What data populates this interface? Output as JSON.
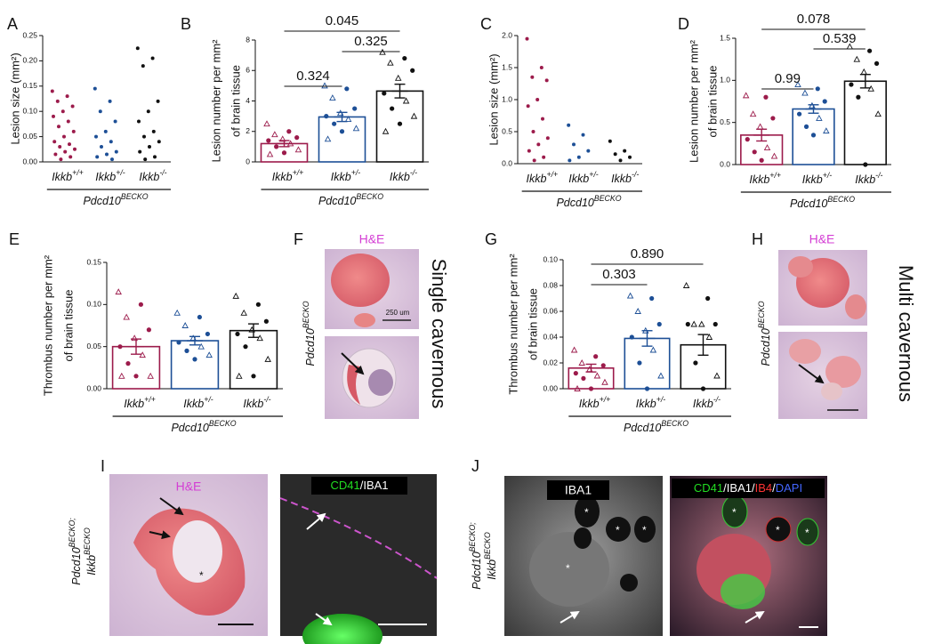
{
  "chart_data": [
    {
      "type": "strip",
      "letter": "A",
      "ylabel": [
        "Lesion size (mm²)"
      ],
      "ylim": [
        0,
        0.25
      ],
      "yticks": [
        {
          "value": 0,
          "label": "0.00"
        },
        {
          "value": 0.05,
          "label": "0.05"
        },
        {
          "value": 0.1,
          "label": "0.10"
        },
        {
          "value": 0.15,
          "label": "0.15"
        },
        {
          "value": 0.2,
          "label": "0.20"
        },
        {
          "value": 0.25,
          "label": "0.25"
        }
      ],
      "categories": [
        "Ikkb+/+",
        "Ikkb+/-",
        "Ikkb-/-"
      ],
      "group": "Pdcd10BECKO",
      "colors": [
        "#9c1b4b",
        "#1d4f96",
        "#111111"
      ],
      "points": [
        [
          0.14,
          0.13,
          0.12,
          0.11,
          0.1,
          0.09,
          0.08,
          0.07,
          0.06,
          0.05,
          0.04,
          0.035,
          0.03,
          0.025,
          0.02,
          0.015,
          0.01,
          0.005
        ],
        [
          0.145,
          0.12,
          0.1,
          0.08,
          0.06,
          0.05,
          0.04,
          0.03,
          0.02,
          0.015,
          0.01,
          0.005
        ],
        [
          0.225,
          0.205,
          0.19,
          0.12,
          0.1,
          0.08,
          0.06,
          0.05,
          0.04,
          0.03,
          0.02,
          0.01,
          0.005
        ]
      ]
    },
    {
      "type": "bar",
      "letter": "B",
      "ylabel": [
        "Lesion number per mm²",
        "of brain tissue"
      ],
      "ylim": [
        0,
        8
      ],
      "yticks": [
        0,
        2,
        4,
        6,
        8
      ],
      "categories": [
        "Ikkb+/+",
        "Ikkb+/-",
        "Ikkb-/-"
      ],
      "group": "Pdcd10BECKO",
      "colors": [
        "#9c1b4b",
        "#1d4f96",
        "#111111"
      ],
      "values": [
        1.2,
        2.95,
        4.65
      ],
      "errors": [
        0.2,
        0.3,
        0.45
      ],
      "points": [
        [
          2.5,
          2.0,
          1.8,
          1.6,
          1.5,
          1.4,
          1.2,
          1.0,
          0.8,
          0.6,
          0.5
        ],
        [
          5.0,
          4.8,
          4.2,
          3.5,
          3.2,
          3.0,
          2.8,
          2.5,
          2.2,
          2.0,
          1.5
        ],
        [
          7.2,
          6.8,
          6.5,
          6.0,
          5.5,
          4.5,
          4.0,
          3.5,
          3.0,
          2.5,
          2.0
        ]
      ],
      "comparisons": [
        {
          "from": 0,
          "to": 1,
          "label": "0.324"
        },
        {
          "from": 1,
          "to": 2,
          "label": "0.325"
        },
        {
          "from": 0,
          "to": 2,
          "label": "0.045"
        }
      ]
    },
    {
      "type": "strip",
      "letter": "C",
      "ylabel": [
        "Lesion size (mm²)"
      ],
      "ylim": [
        0,
        2
      ],
      "yticks": [
        {
          "value": 0,
          "label": "0.0"
        },
        0.5,
        {
          "value": 1,
          "label": "1.0"
        },
        1.5,
        {
          "value": 2,
          "label": "2.0"
        }
      ],
      "categories": [
        "Ikkb+/+",
        "Ikkb+/-",
        "Ikkb-/-"
      ],
      "group": "Pdcd10BECKO",
      "colors": [
        "#9c1b4b",
        "#1d4f96",
        "#111111"
      ],
      "points": [
        [
          1.95,
          1.5,
          1.35,
          1.3,
          1.0,
          0.9,
          0.7,
          0.5,
          0.4,
          0.3,
          0.2,
          0.1,
          0.05
        ],
        [
          0.6,
          0.45,
          0.3,
          0.2,
          0.1,
          0.05
        ],
        [
          0.35,
          0.2,
          0.15,
          0.1,
          0.05
        ]
      ]
    },
    {
      "type": "bar",
      "letter": "D",
      "ylabel": [
        "Lesion number per mm²",
        "of brain tissue"
      ],
      "ylim": [
        0,
        1.5
      ],
      "yticks": [
        {
          "value": 0,
          "label": "0.0"
        },
        0.5,
        {
          "value": 1,
          "label": "1.0"
        },
        1.5
      ],
      "categories": [
        "Ikkb+/+",
        "Ikkb+/-",
        "Ikkb-/-"
      ],
      "group": "Pdcd10BECKO",
      "colors": [
        "#9c1b4b",
        "#1d4f96",
        "#111111"
      ],
      "values": [
        0.35,
        0.66,
        0.99
      ],
      "errors": [
        0.07,
        0.05,
        0.08
      ],
      "points": [
        [
          0.82,
          0.8,
          0.6,
          0.55,
          0.45,
          0.3,
          0.2,
          0.15,
          0.1,
          0.05
        ],
        [
          0.95,
          0.9,
          0.85,
          0.75,
          0.7,
          0.6,
          0.55,
          0.45,
          0.4,
          0.35
        ],
        [
          1.4,
          1.35,
          1.25,
          1.2,
          1.1,
          0.95,
          0.9,
          0.8,
          0.6,
          0.0
        ]
      ],
      "comparisons": [
        {
          "from": 0,
          "to": 1,
          "label": "0.99"
        },
        {
          "from": 1,
          "to": 2,
          "label": "0.539"
        },
        {
          "from": 0,
          "to": 2,
          "label": "0.078"
        }
      ]
    },
    {
      "type": "bar",
      "letter": "E",
      "ylabel": [
        "Thrombus number per mm²",
        "of brain tissue"
      ],
      "ylim": [
        0,
        0.15
      ],
      "yticks": [
        {
          "value": 0,
          "label": "0.00"
        },
        0.05,
        {
          "value": 0.1,
          "label": "0.10"
        },
        0.15
      ],
      "categories": [
        "Ikkb+/+",
        "Ikkb+/-",
        "Ikkb-/-"
      ],
      "group": "Pdcd10BECKO",
      "colors": [
        "#9c1b4b",
        "#1d4f96",
        "#111111"
      ],
      "values": [
        0.05,
        0.057,
        0.069
      ],
      "errors": [
        0.009,
        0.005,
        0.008
      ],
      "points": [
        [
          0.115,
          0.1,
          0.085,
          0.07,
          0.06,
          0.05,
          0.04,
          0.03,
          0.015,
          0.015,
          0.015
        ],
        [
          0.09,
          0.085,
          0.075,
          0.065,
          0.06,
          0.055,
          0.05,
          0.045,
          0.04,
          0.035
        ],
        [
          0.11,
          0.1,
          0.09,
          0.08,
          0.07,
          0.065,
          0.06,
          0.05,
          0.035,
          0.015,
          0.015
        ]
      ]
    },
    {
      "type": "bar",
      "letter": "G",
      "ylabel": [
        "Thrombus number per mm²",
        "of brain tissue"
      ],
      "ylim": [
        0,
        0.1
      ],
      "yticks": [
        {
          "value": 0,
          "label": "0.00"
        },
        0.02,
        0.04,
        0.06,
        0.08,
        {
          "value": 0.1,
          "label": "0.10"
        }
      ],
      "categories": [
        "Ikkb+/+",
        "Ikkb+/-",
        "Ikkb-/-"
      ],
      "group": "Pdcd10BECKO",
      "colors": [
        "#9c1b4b",
        "#1d4f96",
        "#111111"
      ],
      "values": [
        0.016,
        0.039,
        0.034
      ],
      "errors": [
        0.003,
        0.006,
        0.008
      ],
      "points": [
        [
          0.03,
          0.025,
          0.02,
          0.018,
          0.015,
          0.012,
          0.01,
          0.008,
          0.005,
          0.0,
          0.0
        ],
        [
          0.072,
          0.07,
          0.06,
          0.05,
          0.045,
          0.04,
          0.03,
          0.02,
          0.01,
          0.0
        ],
        [
          0.08,
          0.07,
          0.05,
          0.05,
          0.05,
          0.05,
          0.04,
          0.02,
          0.01,
          0.0
        ]
      ],
      "comparisons": [
        {
          "from": 0,
          "to": 1,
          "label": "0.303"
        },
        {
          "from": 0,
          "to": 2,
          "label": "0.890"
        }
      ]
    }
  ],
  "images": {
    "F": {
      "letter": "F",
      "stain": "H&E",
      "scale_bar": "250 um",
      "row_label": "Pdcd10BECKO",
      "side_label": "Single cavernous"
    },
    "H": {
      "letter": "H",
      "stain": "H&E",
      "row_label": "Pdcd10BECKO",
      "side_label": "Multi cavernous"
    },
    "I": {
      "letter": "I",
      "stain": "H&E",
      "fluor": "CD41/IBA1",
      "fluor_colors": [
        "#22dd22",
        "#ffffff"
      ],
      "row_label": [
        "Pdcd10BECKO;",
        "IkkbBECKO"
      ],
      "marker": "*"
    },
    "J": {
      "letter": "J",
      "stain": "IBA1",
      "fluor": "CD41/IBA1/IB4/DAPI",
      "fluor_colors": [
        "#22dd22",
        "#ffffff",
        "#ff3333",
        "#4466ff"
      ],
      "row_label": [
        "Pdcd10BECKO;",
        "IkkbBECKO"
      ],
      "marker": "*"
    }
  }
}
